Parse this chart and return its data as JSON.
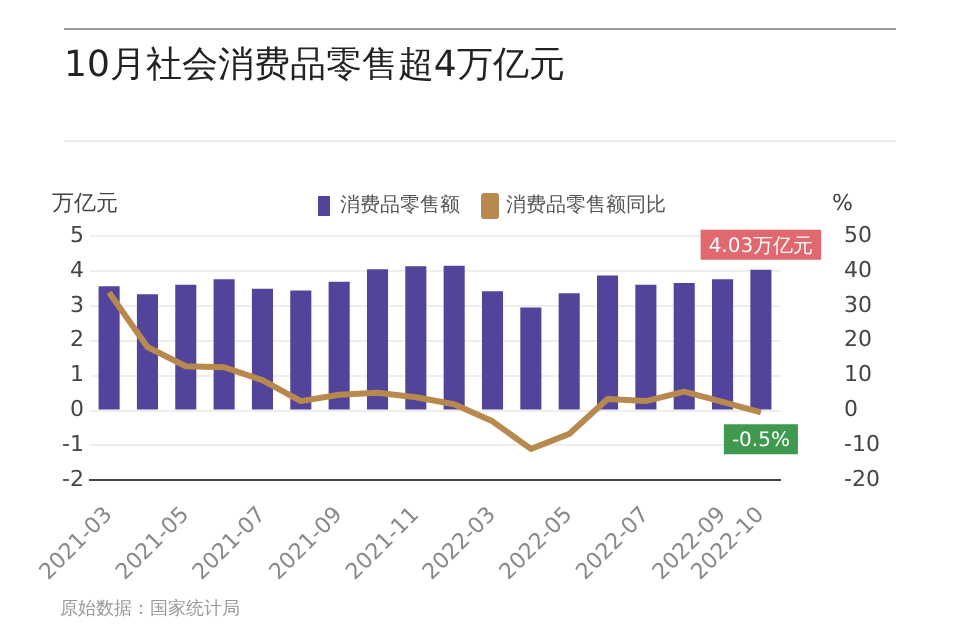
{
  "chart_data": {
    "type": "bar",
    "title": "10月社会消费品零售超4万亿元",
    "ylabel": "万亿元",
    "y2label": "%",
    "categories": [
      "2021-03",
      null,
      "2021-05",
      null,
      "2021-07",
      null,
      "2021-09",
      null,
      "2021-11",
      null,
      "2022-03",
      null,
      "2022-05",
      null,
      "2022-07",
      null,
      "2022-09",
      "2022-10"
    ],
    "series": [
      {
        "name": "消费品零售额",
        "type": "bar",
        "color": "#52449a",
        "values": [
          3.56,
          3.33,
          3.6,
          3.76,
          3.49,
          3.44,
          3.69,
          4.05,
          4.13,
          4.15,
          3.42,
          2.95,
          3.36,
          3.87,
          3.6,
          3.65,
          3.76,
          4.03
        ],
        "value_labels": [
          null,
          null,
          null,
          null,
          null,
          null,
          null,
          null,
          null,
          null,
          null,
          null,
          null,
          null,
          null,
          null,
          null,
          "4.03万亿元"
        ]
      },
      {
        "name": "消费品零售额同比",
        "type": "line",
        "axis": "y2",
        "color": "#b8894e",
        "values": [
          33.8,
          18.2,
          12.7,
          12.4,
          8.7,
          2.7,
          4.5,
          5.1,
          3.8,
          1.8,
          -3.1,
          -11,
          -6.7,
          3.3,
          2.7,
          5.4,
          2.5,
          -0.5
        ],
        "value_labels": [
          null,
          null,
          null,
          null,
          null,
          null,
          null,
          null,
          null,
          null,
          null,
          null,
          null,
          null,
          null,
          null,
          null,
          "-0.5%"
        ]
      }
    ],
    "ylim": [
      -2,
      5
    ],
    "yticks": [
      -2,
      -1,
      0,
      1,
      2,
      3,
      4,
      5
    ],
    "y2lim": [
      -20,
      50
    ],
    "y2ticks": [
      -20,
      -10,
      0,
      10,
      20,
      30,
      40,
      50
    ],
    "grid": "y",
    "legend": "top",
    "marker": "none",
    "line_style": "solid",
    "annotations": [
      "原始数据：国家统计局"
    ]
  }
}
